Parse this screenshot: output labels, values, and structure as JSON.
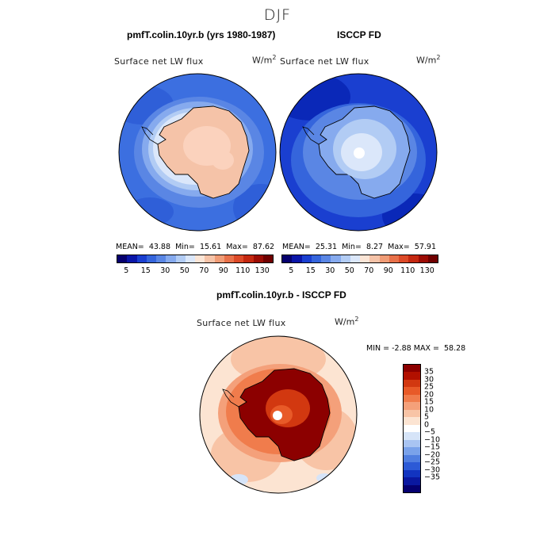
{
  "season": "DJF",
  "panel_left": {
    "title": "pmfT.colin.10yr.b (yrs 1980-1987)",
    "variable": "Surface net LW flux",
    "unit": "W/m",
    "unit_exp": "2",
    "stats": {
      "mean_label": "MEAN=",
      "mean": "43.88",
      "min_label": "Min=",
      "min": "15.61",
      "max_label": "Max=",
      "max": "87.62"
    }
  },
  "panel_right": {
    "title": "ISCCP FD",
    "variable": "Surface net LW flux",
    "unit": "W/m",
    "unit_exp": "2",
    "stats": {
      "mean_label": "MEAN=",
      "mean": "25.31",
      "min_label": "Min=",
      "min": "8.27",
      "max_label": "Max=",
      "max": "57.91"
    }
  },
  "panel_diff": {
    "title": "pmfT.colin.10yr.b - ISCCP FD",
    "variable": "Surface net LW flux",
    "unit": "W/m",
    "unit_exp": "2",
    "stats": {
      "min_label": "MIN =",
      "min": "-2.88",
      "max_label": "MAX =",
      "max": "58.28"
    }
  },
  "colorbar_top": {
    "colors": [
      "#06006e",
      "#0a16a8",
      "#1a3fd0",
      "#3565dc",
      "#5a86e4",
      "#86aaee",
      "#b2ccf4",
      "#dbe7fa",
      "#fbe5d6",
      "#f5c3a8",
      "#f09c76",
      "#e8714a",
      "#dc4a28",
      "#c42810",
      "#9c0c04",
      "#700000"
    ],
    "ticks": [
      "5",
      "15",
      "30",
      "50",
      "70",
      "90",
      "110",
      "130"
    ]
  },
  "colorbar_diff": {
    "colors": [
      "#8c0000",
      "#b21000",
      "#d23810",
      "#e85a28",
      "#f07c4c",
      "#f4a07a",
      "#f8c4a6",
      "#fce4d2",
      "#ffffff",
      "#d6e4f8",
      "#a9c4f2",
      "#7aa2ea",
      "#507ee0",
      "#2c5ad6",
      "#1234c0",
      "#0a18a0",
      "#050070"
    ],
    "ticks": [
      "35",
      "30",
      "25",
      "20",
      "15",
      "10",
      "5",
      "0",
      "−5",
      "−10",
      "−15",
      "−20",
      "−25",
      "−30",
      "−35"
    ]
  }
}
